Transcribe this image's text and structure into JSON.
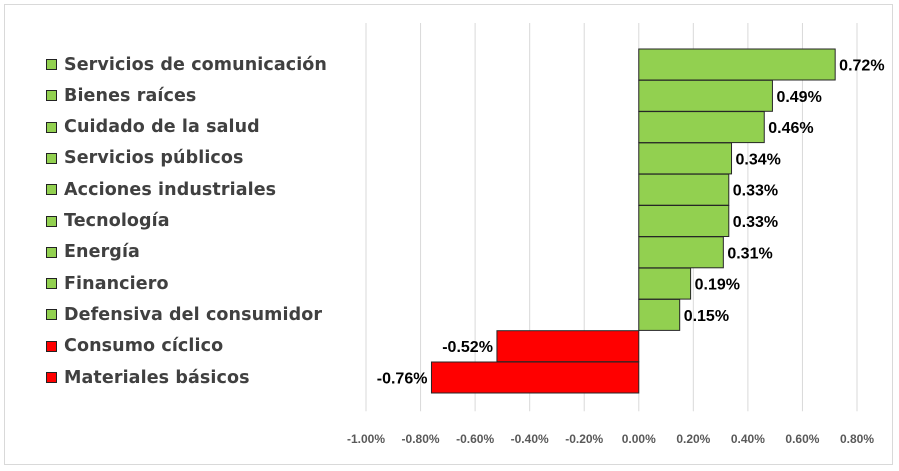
{
  "chart_data": {
    "type": "bar",
    "orientation": "horizontal",
    "categories": [
      "Servicios de comunicación",
      "Bienes raíces",
      "Cuidado de la salud",
      "Servicios públicos",
      "Acciones industriales",
      "Tecnología",
      "Energía",
      "Financiero",
      "Defensiva del consumidor",
      "Consumo cíclico",
      "Materiales básicos"
    ],
    "values": [
      0.72,
      0.49,
      0.46,
      0.34,
      0.33,
      0.33,
      0.31,
      0.19,
      0.15,
      -0.52,
      -0.76
    ],
    "data_labels": [
      "0.72%",
      "0.49%",
      "0.46%",
      "0.34%",
      "0.33%",
      "0.33%",
      "0.31%",
      "0.19%",
      "0.15%",
      "-0.52%",
      "-0.76%"
    ],
    "xlim": [
      -1.0,
      0.8
    ],
    "x_ticks": [
      -1.0,
      -0.8,
      -0.6,
      -0.4,
      -0.2,
      0.0,
      0.2,
      0.4,
      0.6,
      0.8
    ],
    "x_tick_labels": [
      "-1.00%",
      "-0.80%",
      "-0.60%",
      "-0.40%",
      "-0.20%",
      "0.00%",
      "0.20%",
      "0.40%",
      "0.60%",
      "0.80%"
    ],
    "title": "",
    "xlabel": "",
    "ylabel": "",
    "grid": "vertical",
    "legend": "left",
    "colors": {
      "positive": "#92d050",
      "negative": "#ff0000",
      "edge": "#262626",
      "grid": "#d9d9d9"
    }
  }
}
